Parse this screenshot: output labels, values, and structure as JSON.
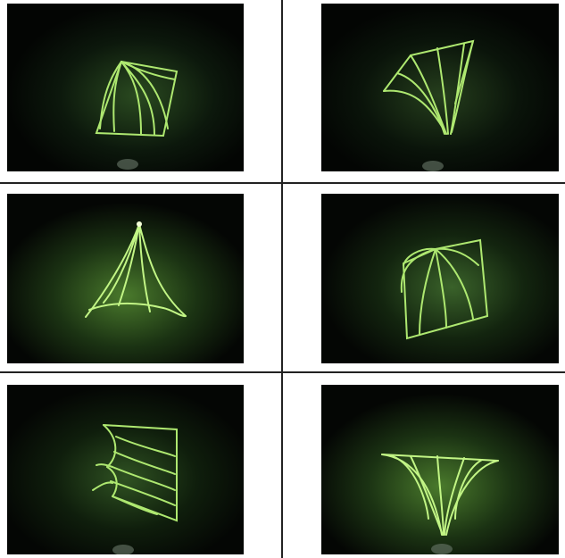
{
  "figure": {
    "panels": [
      {
        "shape": "sheet-peak-top"
      },
      {
        "shape": "sheet-dip-bottom"
      },
      {
        "shape": "spire-triangle"
      },
      {
        "shape": "sheet-peak-top-right"
      },
      {
        "shape": "sheet-folded-left"
      },
      {
        "shape": "sheet-dip-center"
      }
    ],
    "colors": {
      "background": "#050805",
      "glow": "#3f6a2a",
      "filament": "#b8f27a",
      "divider": "#222222"
    }
  }
}
